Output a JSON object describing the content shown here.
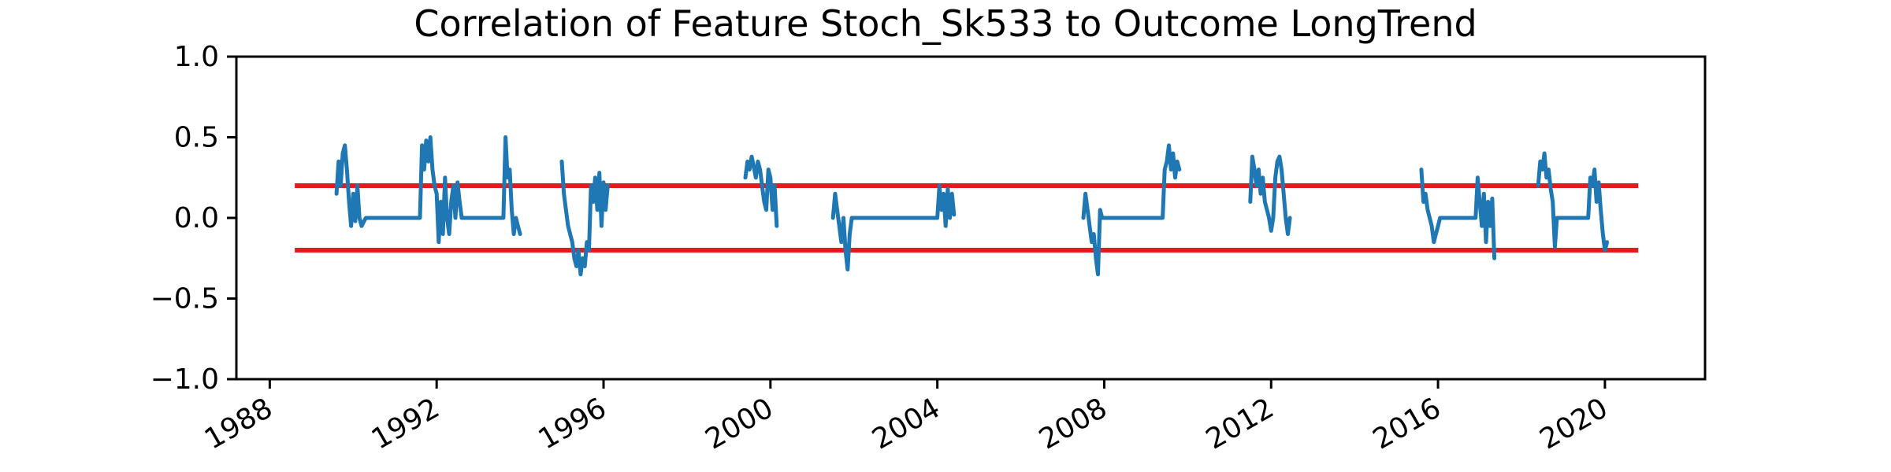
{
  "chart_data": {
    "type": "line",
    "title": "Correlation of Feature Stoch_Sk533 to Outcome LongTrend",
    "xlabel": "",
    "ylabel": "",
    "xlim": [
      1987.2,
      2022.4
    ],
    "ylim": [
      -1.0,
      1.0
    ],
    "x_ticks": [
      1988,
      1992,
      1996,
      2000,
      2004,
      2008,
      2012,
      2016,
      2020
    ],
    "x_tick_labels": [
      "1988",
      "1992",
      "1996",
      "2000",
      "2004",
      "2008",
      "2012",
      "2016",
      "2020"
    ],
    "y_ticks": [
      1.0,
      0.5,
      0.0,
      -0.5,
      -1.0
    ],
    "y_tick_labels": [
      "1.0",
      "0.5",
      "0.0",
      "−0.5",
      "−1.0"
    ],
    "grid": false,
    "legend": "none",
    "colors": {
      "series": "#1f77b4",
      "threshold": "#e41a1c"
    },
    "thresholds": [
      {
        "y": 0.2,
        "x_range": [
          1988.6,
          2020.8
        ]
      },
      {
        "y": -0.2,
        "x_range": [
          1988.6,
          2020.8
        ]
      }
    ],
    "series": [
      {
        "segments": [
          [
            [
              1989.6,
              0.15
            ],
            [
              1989.65,
              0.35
            ],
            [
              1989.7,
              0.2
            ],
            [
              1989.75,
              0.4
            ],
            [
              1989.8,
              0.45
            ],
            [
              1989.85,
              0.3
            ],
            [
              1989.9,
              0.1
            ],
            [
              1989.95,
              -0.05
            ],
            [
              1990.0,
              0.15
            ],
            [
              1990.05,
              -0.02
            ],
            [
              1990.1,
              0.2
            ],
            [
              1990.15,
              0.0
            ],
            [
              1990.2,
              -0.05
            ],
            [
              1990.3,
              0.0
            ],
            [
              1991.6,
              0.0
            ],
            [
              1991.65,
              0.45
            ],
            [
              1991.7,
              0.3
            ],
            [
              1991.75,
              0.48
            ],
            [
              1991.8,
              0.35
            ],
            [
              1991.85,
              0.5
            ],
            [
              1991.9,
              0.3
            ],
            [
              1991.95,
              0.2
            ],
            [
              1992.0,
              0.15
            ],
            [
              1992.05,
              -0.15
            ],
            [
              1992.1,
              0.1
            ],
            [
              1992.15,
              -0.1
            ],
            [
              1992.2,
              0.25
            ],
            [
              1992.25,
              0.0
            ],
            [
              1992.3,
              -0.1
            ],
            [
              1992.35,
              0.1
            ],
            [
              1992.4,
              0.2
            ],
            [
              1992.45,
              0.0
            ],
            [
              1992.5,
              0.22
            ],
            [
              1992.55,
              0.1
            ],
            [
              1992.6,
              0.0
            ],
            [
              1993.6,
              0.0
            ],
            [
              1993.65,
              0.5
            ],
            [
              1993.7,
              0.25
            ],
            [
              1993.75,
              0.3
            ],
            [
              1993.8,
              0.05
            ],
            [
              1993.85,
              -0.1
            ],
            [
              1993.9,
              0.0
            ],
            [
              1993.95,
              -0.05
            ],
            [
              1994.0,
              -0.1
            ]
          ],
          [
            [
              1995.0,
              0.35
            ],
            [
              1995.05,
              0.15
            ],
            [
              1995.1,
              0.05
            ],
            [
              1995.15,
              -0.05
            ],
            [
              1995.2,
              -0.1
            ],
            [
              1995.25,
              -0.15
            ],
            [
              1995.3,
              -0.25
            ],
            [
              1995.35,
              -0.3
            ],
            [
              1995.4,
              -0.2
            ],
            [
              1995.45,
              -0.35
            ],
            [
              1995.5,
              -0.25
            ],
            [
              1995.55,
              -0.3
            ],
            [
              1995.6,
              -0.15
            ],
            [
              1995.65,
              -0.2
            ],
            [
              1995.7,
              0.2
            ],
            [
              1995.75,
              0.1
            ],
            [
              1995.8,
              0.25
            ],
            [
              1995.85,
              0.05
            ],
            [
              1995.9,
              0.28
            ],
            [
              1995.95,
              -0.05
            ],
            [
              1996.0,
              0.22
            ],
            [
              1996.05,
              0.05
            ],
            [
              1996.1,
              0.2
            ]
          ],
          [
            [
              1999.4,
              0.25
            ],
            [
              1999.45,
              0.35
            ],
            [
              1999.5,
              0.3
            ],
            [
              1999.55,
              0.38
            ],
            [
              1999.6,
              0.32
            ],
            [
              1999.65,
              0.25
            ],
            [
              1999.7,
              0.35
            ],
            [
              1999.75,
              0.3
            ],
            [
              1999.8,
              0.2
            ],
            [
              1999.85,
              0.1
            ],
            [
              1999.9,
              0.05
            ],
            [
              1999.95,
              0.3
            ],
            [
              2000.0,
              0.25
            ],
            [
              2000.05,
              0.05
            ],
            [
              2000.1,
              0.2
            ],
            [
              2000.15,
              -0.05
            ]
          ],
          [
            [
              2001.5,
              0.0
            ],
            [
              2001.55,
              0.15
            ],
            [
              2001.6,
              0.05
            ],
            [
              2001.65,
              -0.05
            ],
            [
              2001.7,
              -0.15
            ],
            [
              2001.75,
              0.0
            ],
            [
              2001.8,
              -0.2
            ],
            [
              2001.85,
              -0.32
            ],
            [
              2001.9,
              -0.1
            ],
            [
              2001.95,
              0.0
            ],
            [
              2004.0,
              0.0
            ],
            [
              2004.05,
              0.2
            ],
            [
              2004.1,
              0.05
            ],
            [
              2004.15,
              0.15
            ],
            [
              2004.2,
              -0.05
            ],
            [
              2004.25,
              0.18
            ],
            [
              2004.3,
              0.0
            ],
            [
              2004.35,
              0.15
            ],
            [
              2004.4,
              0.02
            ]
          ],
          [
            [
              2007.5,
              0.0
            ],
            [
              2007.55,
              0.15
            ],
            [
              2007.6,
              0.05
            ],
            [
              2007.65,
              -0.05
            ],
            [
              2007.7,
              -0.15
            ],
            [
              2007.75,
              -0.1
            ],
            [
              2007.8,
              -0.25
            ],
            [
              2007.85,
              -0.35
            ],
            [
              2007.9,
              0.05
            ],
            [
              2007.95,
              0.0
            ],
            [
              2009.4,
              0.0
            ],
            [
              2009.45,
              0.3
            ],
            [
              2009.5,
              0.35
            ],
            [
              2009.55,
              0.45
            ],
            [
              2009.6,
              0.3
            ],
            [
              2009.65,
              0.4
            ],
            [
              2009.7,
              0.25
            ],
            [
              2009.75,
              0.35
            ],
            [
              2009.8,
              0.3
            ]
          ],
          [
            [
              2011.5,
              0.1
            ],
            [
              2011.55,
              0.38
            ],
            [
              2011.6,
              0.3
            ],
            [
              2011.65,
              0.2
            ],
            [
              2011.7,
              0.3
            ],
            [
              2011.75,
              0.15
            ],
            [
              2011.8,
              0.25
            ],
            [
              2011.85,
              0.1
            ],
            [
              2011.9,
              0.05
            ],
            [
              2011.95,
              0.0
            ],
            [
              2012.0,
              -0.08
            ],
            [
              2012.05,
              0.0
            ],
            [
              2012.1,
              0.25
            ],
            [
              2012.15,
              0.35
            ],
            [
              2012.2,
              0.38
            ],
            [
              2012.25,
              0.3
            ],
            [
              2012.3,
              0.15
            ],
            [
              2012.35,
              0.0
            ],
            [
              2012.4,
              -0.1
            ],
            [
              2012.45,
              0.0
            ]
          ],
          [
            [
              2015.6,
              0.3
            ],
            [
              2015.65,
              0.1
            ],
            [
              2015.7,
              0.15
            ],
            [
              2015.75,
              0.05
            ],
            [
              2015.8,
              0.0
            ],
            [
              2015.85,
              -0.05
            ],
            [
              2015.9,
              -0.15
            ],
            [
              2015.95,
              -0.1
            ],
            [
              2016.0,
              -0.05
            ],
            [
              2016.05,
              0.0
            ],
            [
              2016.9,
              0.0
            ],
            [
              2016.95,
              0.25
            ],
            [
              2017.0,
              0.1
            ],
            [
              2017.05,
              -0.05
            ],
            [
              2017.1,
              0.15
            ],
            [
              2017.15,
              -0.15
            ],
            [
              2017.2,
              0.1
            ],
            [
              2017.25,
              -0.05
            ],
            [
              2017.3,
              0.12
            ],
            [
              2017.35,
              -0.25
            ]
          ],
          [
            [
              2018.4,
              0.2
            ],
            [
              2018.45,
              0.35
            ],
            [
              2018.5,
              0.3
            ],
            [
              2018.55,
              0.4
            ],
            [
              2018.6,
              0.25
            ],
            [
              2018.65,
              0.3
            ],
            [
              2018.7,
              0.18
            ],
            [
              2018.75,
              0.1
            ],
            [
              2018.8,
              -0.18
            ],
            [
              2018.85,
              0.0
            ],
            [
              2019.6,
              0.0
            ],
            [
              2019.65,
              0.25
            ],
            [
              2019.7,
              0.2
            ],
            [
              2019.75,
              0.3
            ],
            [
              2019.8,
              0.1
            ],
            [
              2019.85,
              0.22
            ],
            [
              2019.9,
              0.05
            ],
            [
              2019.95,
              -0.1
            ],
            [
              2020.0,
              -0.2
            ],
            [
              2020.05,
              -0.15
            ]
          ]
        ]
      }
    ]
  }
}
